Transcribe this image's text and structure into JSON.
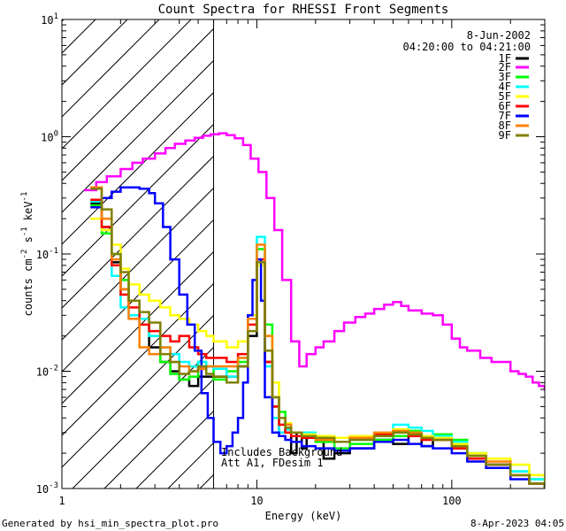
{
  "chart_data": {
    "type": "line",
    "title": "Count Spectra for RHESSI Front Segments",
    "xlabel": "Energy (keV)",
    "ylabel_text": "counts cm",
    "ylabel_exp1": "-2",
    "ylabel_s": " s",
    "ylabel_exp2": "-1",
    "ylabel_kev": " keV",
    "ylabel_exp3": "-1",
    "x_scale": "log",
    "y_scale": "log",
    "xlim": [
      1,
      300
    ],
    "ylim": [
      0.001,
      10
    ],
    "x_tick_labels": [
      {
        "value": 1,
        "label": "1"
      },
      {
        "value": 10,
        "label": "10"
      },
      {
        "value": 100,
        "label": "100"
      }
    ],
    "y_tick_labels": [
      {
        "value": 0.001,
        "base": "10",
        "exp": "-3"
      },
      {
        "value": 0.01,
        "base": "10",
        "exp": "-2"
      },
      {
        "value": 0.1,
        "base": "10",
        "exp": "-1"
      },
      {
        "value": 1,
        "base": "10",
        "exp": "0"
      },
      {
        "value": 10,
        "base": "10",
        "exp": "1"
      }
    ],
    "date": "8-Jun-2002",
    "time_range": "04:20:00 to 04:21:00",
    "hatch_region_max_energy": 6,
    "annotations": [
      "Includes Background",
      "Att A1, FDesim 1"
    ],
    "footer_left": "Generated by hsi_min_spectra_plot.pro",
    "footer_right": "8-Apr-2023 04:05",
    "series": [
      {
        "name": "1F",
        "color": "#000000",
        "x": [
          1.4,
          1.6,
          1.8,
          2.0,
          2.2,
          2.5,
          2.8,
          3.2,
          3.6,
          4.0,
          4.5,
          5.0,
          5.5,
          6.0,
          7.0,
          8.0,
          9.0,
          10.0,
          11.0,
          12.0,
          13.0,
          14.0,
          15.0,
          16.0,
          17.0,
          18.0,
          20.0,
          22.0,
          25.0,
          30.0,
          40.0,
          50.0,
          60.0,
          70.0,
          80.0,
          100.0,
          120.0,
          150.0,
          200.0,
          250.0,
          300.0
        ],
        "y": [
          0.27,
          0.17,
          0.085,
          0.05,
          0.04,
          0.025,
          0.016,
          0.012,
          0.01,
          0.0085,
          0.0075,
          0.009,
          0.009,
          0.009,
          0.009,
          0.011,
          0.02,
          0.08,
          0.012,
          0.005,
          0.003,
          0.0032,
          0.002,
          0.003,
          0.0022,
          0.0028,
          0.0025,
          0.0018,
          0.002,
          0.0022,
          0.0026,
          0.0024,
          0.003,
          0.0023,
          0.0026,
          0.0022,
          0.0019,
          0.0016,
          0.0013,
          0.0011,
          0.001
        ]
      },
      {
        "name": "2F",
        "color": "#ff00ff",
        "x": [
          1.3,
          1.5,
          1.7,
          2.0,
          2.3,
          2.6,
          3.0,
          3.4,
          3.8,
          4.3,
          4.8,
          5.3,
          5.8,
          6.4,
          7.0,
          7.7,
          8.5,
          9.3,
          10.2,
          11.2,
          12.3,
          13.5,
          15.0,
          16.5,
          18.0,
          20.0,
          22.0,
          25.0,
          28.0,
          32.0,
          36.0,
          40.0,
          45.0,
          50.0,
          55.0,
          60.0,
          70.0,
          80.0,
          90.0,
          100.0,
          110.0,
          120.0,
          140.0,
          160.0,
          180.0,
          200.0,
          220.0,
          240.0,
          260.0,
          280.0,
          300.0
        ],
        "y": [
          0.35,
          0.41,
          0.46,
          0.53,
          0.6,
          0.65,
          0.72,
          0.8,
          0.87,
          0.93,
          0.98,
          1.02,
          1.05,
          1.07,
          1.03,
          0.97,
          0.85,
          0.65,
          0.5,
          0.3,
          0.16,
          0.06,
          0.018,
          0.011,
          0.014,
          0.016,
          0.018,
          0.022,
          0.026,
          0.029,
          0.031,
          0.034,
          0.037,
          0.039,
          0.036,
          0.033,
          0.031,
          0.03,
          0.025,
          0.019,
          0.016,
          0.015,
          0.013,
          0.012,
          0.012,
          0.01,
          0.0095,
          0.009,
          0.008,
          0.0075,
          0.007
        ]
      },
      {
        "name": "3F",
        "color": "#00ff00",
        "x": [
          1.4,
          1.6,
          1.8,
          2.0,
          2.2,
          2.5,
          2.8,
          3.2,
          3.6,
          4.0,
          4.5,
          5.0,
          5.5,
          6.0,
          7.0,
          8.0,
          9.0,
          10.0,
          11.0,
          12.0,
          13.0,
          14.0,
          15.0,
          17.0,
          20.0,
          25.0,
          30.0,
          40.0,
          50.0,
          60.0,
          70.0,
          80.0,
          100.0,
          120.0,
          150.0,
          200.0,
          250.0,
          300.0
        ],
        "y": [
          0.26,
          0.15,
          0.1,
          0.06,
          0.04,
          0.025,
          0.02,
          0.012,
          0.0095,
          0.0085,
          0.009,
          0.012,
          0.011,
          0.0085,
          0.01,
          0.012,
          0.028,
          0.11,
          0.025,
          0.006,
          0.0045,
          0.0035,
          0.003,
          0.0028,
          0.0025,
          0.0022,
          0.0024,
          0.0026,
          0.0028,
          0.0031,
          0.0028,
          0.0029,
          0.0026,
          0.002,
          0.0018,
          0.0014,
          0.0012,
          0.0011
        ]
      },
      {
        "name": "4F",
        "color": "#00ffff",
        "x": [
          1.4,
          1.6,
          1.8,
          2.0,
          2.2,
          2.5,
          2.8,
          3.2,
          3.6,
          4.0,
          4.5,
          5.0,
          5.5,
          6.0,
          7.0,
          8.0,
          9.0,
          10.0,
          11.0,
          12.0,
          13.0,
          14.0,
          15.0,
          17.0,
          20.0,
          25.0,
          30.0,
          40.0,
          50.0,
          60.0,
          70.0,
          80.0,
          100.0,
          120.0,
          150.0,
          200.0,
          250.0,
          300.0
        ],
        "y": [
          0.28,
          0.16,
          0.065,
          0.035,
          0.03,
          0.028,
          0.02,
          0.016,
          0.014,
          0.012,
          0.011,
          0.012,
          0.011,
          0.0105,
          0.009,
          0.013,
          0.03,
          0.14,
          0.011,
          0.004,
          0.003,
          0.0032,
          0.0028,
          0.003,
          0.0027,
          0.0025,
          0.0026,
          0.003,
          0.0035,
          0.0033,
          0.0031,
          0.0028,
          0.0025,
          0.002,
          0.0018,
          0.0014,
          0.0012,
          0.001
        ]
      },
      {
        "name": "5F",
        "color": "#ffff00",
        "x": [
          1.4,
          1.6,
          1.8,
          2.0,
          2.2,
          2.5,
          2.8,
          3.2,
          3.6,
          4.0,
          4.5,
          5.0,
          5.5,
          6.0,
          7.0,
          8.0,
          9.0,
          10.0,
          11.0,
          12.0,
          13.0,
          14.0,
          15.0,
          17.0,
          20.0,
          25.0,
          30.0,
          40.0,
          50.0,
          60.0,
          70.0,
          80.0,
          100.0,
          120.0,
          150.0,
          200.0,
          250.0,
          300.0
        ],
        "y": [
          0.2,
          0.16,
          0.12,
          0.075,
          0.055,
          0.045,
          0.04,
          0.035,
          0.03,
          0.028,
          0.025,
          0.022,
          0.02,
          0.018,
          0.016,
          0.018,
          0.03,
          0.08,
          0.02,
          0.008,
          0.004,
          0.0036,
          0.003,
          0.0029,
          0.0028,
          0.0027,
          0.0028,
          0.003,
          0.0032,
          0.003,
          0.0028,
          0.0027,
          0.0024,
          0.002,
          0.0018,
          0.0016,
          0.0013,
          0.0011
        ]
      },
      {
        "name": "6F",
        "color": "#ff0000",
        "x": [
          1.4,
          1.6,
          1.8,
          2.0,
          2.2,
          2.5,
          2.8,
          3.2,
          3.6,
          4.0,
          4.5,
          5.0,
          5.5,
          6.0,
          7.0,
          8.0,
          9.0,
          10.0,
          11.0,
          12.0,
          13.0,
          14.0,
          15.0,
          17.0,
          20.0,
          25.0,
          30.0,
          40.0,
          50.0,
          60.0,
          70.0,
          80.0,
          100.0,
          120.0,
          150.0,
          200.0,
          250.0,
          300.0
        ],
        "y": [
          0.29,
          0.17,
          0.08,
          0.045,
          0.035,
          0.025,
          0.022,
          0.02,
          0.018,
          0.02,
          0.016,
          0.014,
          0.013,
          0.013,
          0.012,
          0.014,
          0.025,
          0.09,
          0.012,
          0.005,
          0.0035,
          0.003,
          0.0028,
          0.0027,
          0.0026,
          0.0025,
          0.0027,
          0.0029,
          0.003,
          0.0028,
          0.0026,
          0.0026,
          0.0022,
          0.0018,
          0.0016,
          0.0013,
          0.0011,
          0.001
        ]
      },
      {
        "name": "7F",
        "color": "#0000ff",
        "x": [
          1.4,
          1.6,
          1.8,
          2.0,
          2.2,
          2.5,
          2.8,
          3.0,
          3.3,
          3.6,
          4.0,
          4.4,
          4.8,
          5.2,
          5.6,
          6.0,
          6.5,
          7.0,
          7.5,
          8.0,
          8.5,
          9.0,
          9.5,
          10.0,
          10.5,
          11.0,
          12.0,
          13.0,
          14.0,
          15.0,
          17.0,
          20.0,
          25.0,
          30.0,
          40.0,
          50.0,
          60.0,
          70.0,
          80.0,
          100.0,
          120.0,
          150.0,
          200.0,
          250.0,
          300.0
        ],
        "y": [
          0.25,
          0.3,
          0.34,
          0.37,
          0.37,
          0.36,
          0.33,
          0.27,
          0.17,
          0.09,
          0.045,
          0.025,
          0.015,
          0.0065,
          0.004,
          0.0025,
          0.002,
          0.0023,
          0.003,
          0.004,
          0.008,
          0.03,
          0.06,
          0.09,
          0.04,
          0.006,
          0.003,
          0.0028,
          0.0026,
          0.0025,
          0.0023,
          0.0022,
          0.0021,
          0.0022,
          0.0025,
          0.0026,
          0.0024,
          0.0023,
          0.0022,
          0.002,
          0.0017,
          0.0015,
          0.0012,
          0.0011,
          0.001
        ]
      },
      {
        "name": "8F",
        "color": "#ff8000",
        "x": [
          1.4,
          1.6,
          1.8,
          2.0,
          2.2,
          2.5,
          2.8,
          3.2,
          3.6,
          4.0,
          4.5,
          5.0,
          5.5,
          6.0,
          7.0,
          8.0,
          9.0,
          10.0,
          11.0,
          12.0,
          13.0,
          14.0,
          15.0,
          17.0,
          20.0,
          25.0,
          30.0,
          40.0,
          50.0,
          60.0,
          70.0,
          80.0,
          100.0,
          120.0,
          150.0,
          200.0,
          250.0,
          300.0
        ],
        "y": [
          0.37,
          0.2,
          0.09,
          0.05,
          0.028,
          0.016,
          0.014,
          0.016,
          0.012,
          0.011,
          0.01,
          0.0105,
          0.011,
          0.011,
          0.011,
          0.013,
          0.028,
          0.12,
          0.02,
          0.006,
          0.004,
          0.0035,
          0.003,
          0.0028,
          0.0026,
          0.0025,
          0.0027,
          0.003,
          0.0031,
          0.003,
          0.0027,
          0.0026,
          0.0023,
          0.0019,
          0.0017,
          0.0013,
          0.0011,
          0.001
        ]
      },
      {
        "name": "9F",
        "color": "#808000",
        "x": [
          1.4,
          1.6,
          1.8,
          2.0,
          2.2,
          2.5,
          2.8,
          3.2,
          3.6,
          4.0,
          4.5,
          5.0,
          5.5,
          6.0,
          7.0,
          8.0,
          9.0,
          10.0,
          11.0,
          12.0,
          13.0,
          14.0,
          15.0,
          17.0,
          20.0,
          25.0,
          30.0,
          40.0,
          50.0,
          60.0,
          70.0,
          80.0,
          100.0,
          120.0,
          150.0,
          200.0,
          250.0,
          300.0
        ],
        "y": [
          0.36,
          0.24,
          0.1,
          0.07,
          0.04,
          0.032,
          0.026,
          0.014,
          0.012,
          0.0095,
          0.01,
          0.011,
          0.0095,
          0.009,
          0.008,
          0.011,
          0.022,
          0.085,
          0.015,
          0.006,
          0.004,
          0.0033,
          0.003,
          0.0028,
          0.0027,
          0.0025,
          0.0026,
          0.0028,
          0.003,
          0.0029,
          0.0027,
          0.0026,
          0.0023,
          0.0019,
          0.0016,
          0.0013,
          0.0011,
          0.001
        ]
      }
    ]
  }
}
